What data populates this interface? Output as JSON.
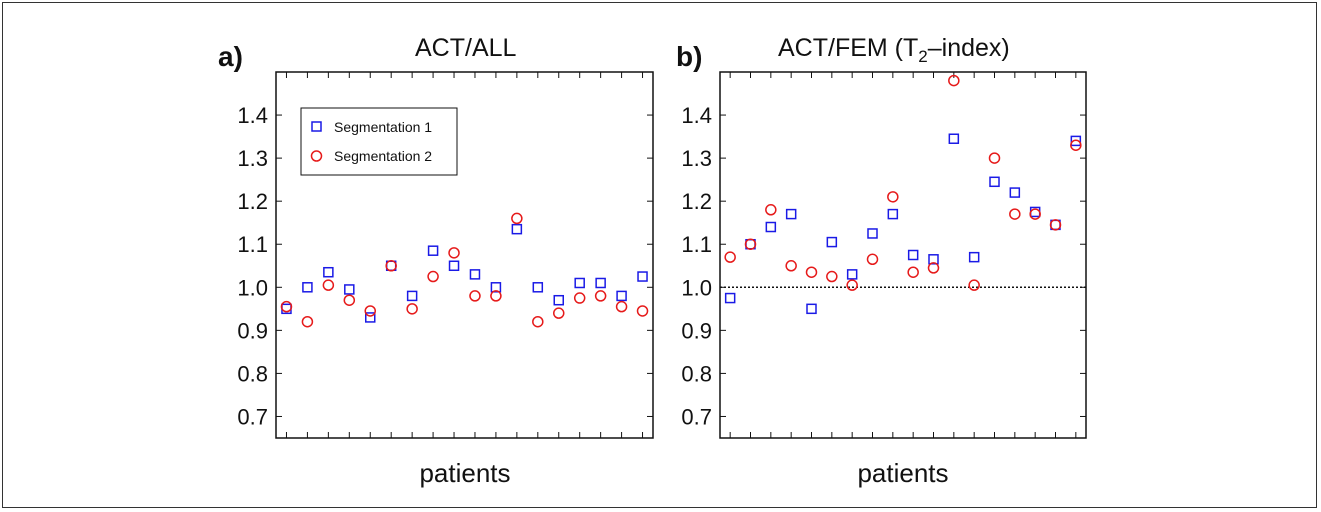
{
  "colors": {
    "seg1": "#1a1ae6",
    "seg2": "#e61a1a",
    "axis": "#111111"
  },
  "legend": {
    "seg1_label": "Segmentation 1",
    "seg2_label": "Segmentation 2",
    "placement": "top-left (panel a)"
  },
  "chart_data": [
    {
      "type": "scatter",
      "panel": "a)",
      "title": "ACT/ALL",
      "xlabel": "patients",
      "ylabel": "",
      "ylim": [
        0.65,
        1.5
      ],
      "yticks": [
        "0.7",
        "0.8",
        "0.9",
        "1.0",
        "1.1",
        "1.2",
        "1.3",
        "1.4"
      ],
      "xlim": [
        0.5,
        18.5
      ],
      "x_tick_marks": [
        1,
        2,
        3,
        4,
        5,
        6,
        7,
        8,
        9,
        10,
        11,
        12,
        13,
        14,
        15,
        16,
        17,
        18
      ],
      "reference_line": null,
      "series": [
        {
          "name": "Segmentation 1",
          "marker": "square",
          "x": [
            1,
            2,
            3,
            4,
            5,
            6,
            7,
            8,
            9,
            10,
            11,
            12,
            13,
            14,
            15,
            16,
            17,
            18
          ],
          "values": [
            0.95,
            1.0,
            1.035,
            0.995,
            0.93,
            1.05,
            0.98,
            1.085,
            1.05,
            1.03,
            1.0,
            1.135,
            1.0,
            0.97,
            1.01,
            1.01,
            0.98,
            1.025
          ]
        },
        {
          "name": "Segmentation 2",
          "marker": "circle",
          "x": [
            1,
            2,
            3,
            4,
            5,
            6,
            7,
            8,
            9,
            10,
            11,
            12,
            13,
            14,
            15,
            16,
            17,
            18
          ],
          "values": [
            0.955,
            0.92,
            1.005,
            0.97,
            0.945,
            1.05,
            0.95,
            1.025,
            1.08,
            0.98,
            0.98,
            1.16,
            0.92,
            0.94,
            0.975,
            0.98,
            0.955,
            0.945
          ]
        }
      ]
    },
    {
      "type": "scatter",
      "panel": "b)",
      "title": "ACT/FEM (T",
      "title_sub": "2",
      "title_suffix": "–index)",
      "xlabel": "patients",
      "ylabel": "",
      "ylim": [
        0.65,
        1.5
      ],
      "yticks": [
        "0.7",
        "0.8",
        "0.9",
        "1.0",
        "1.1",
        "1.2",
        "1.3",
        "1.4"
      ],
      "xlim": [
        0.5,
        18.5
      ],
      "x_tick_marks": [
        1,
        2,
        3,
        4,
        5,
        6,
        7,
        8,
        9,
        10,
        11,
        12,
        13,
        14,
        15,
        16,
        17,
        18
      ],
      "reference_line": 1.0,
      "series": [
        {
          "name": "Segmentation 1",
          "marker": "square",
          "x": [
            1,
            2,
            3,
            4,
            5,
            6,
            7,
            8,
            9,
            10,
            11,
            12,
            13,
            14,
            15,
            16,
            17,
            18
          ],
          "values": [
            0.975,
            1.1,
            1.14,
            1.17,
            0.95,
            1.105,
            1.03,
            1.125,
            1.17,
            1.075,
            1.065,
            1.345,
            1.07,
            1.245,
            1.22,
            1.175,
            1.145,
            1.34
          ]
        },
        {
          "name": "Segmentation 2",
          "marker": "circle",
          "x": [
            1,
            2,
            3,
            4,
            5,
            6,
            7,
            8,
            9,
            10,
            11,
            12,
            13,
            14,
            15,
            16,
            17,
            18
          ],
          "values": [
            1.07,
            1.1,
            1.18,
            1.05,
            1.035,
            1.025,
            1.005,
            1.065,
            1.21,
            1.035,
            1.045,
            1.48,
            1.005,
            1.3,
            1.17,
            1.17,
            1.145,
            1.33
          ]
        }
      ]
    }
  ]
}
